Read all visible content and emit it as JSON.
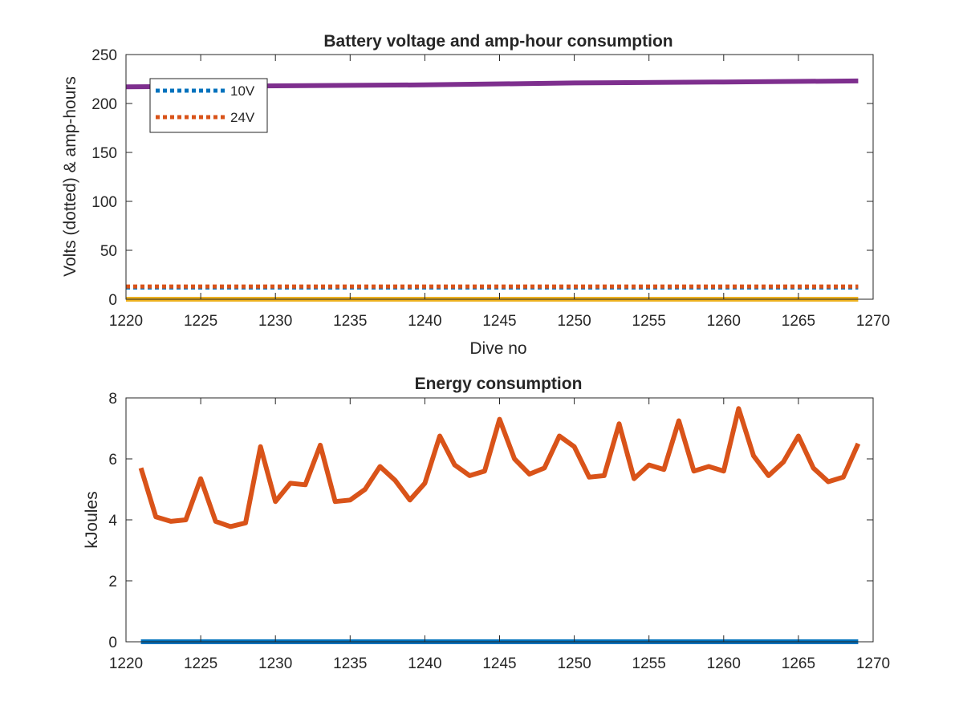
{
  "figure": {
    "background": "#ffffff"
  },
  "chart_data": [
    {
      "type": "line",
      "title": "Battery voltage and amp-hour consumption",
      "xlabel": "Dive no",
      "ylabel": "Volts (dotted) & amp-hours",
      "xlim": [
        1220,
        1270
      ],
      "ylim": [
        0,
        250
      ],
      "xticks": [
        "1220",
        "1225",
        "1230",
        "1235",
        "1240",
        "1245",
        "1250",
        "1255",
        "1260",
        "1265",
        "1270"
      ],
      "yticks": [
        "0",
        "50",
        "100",
        "150",
        "200",
        "250"
      ],
      "grid": false,
      "legend_position": "top-left",
      "series": [
        {
          "name": "10V",
          "style": "dotted",
          "color": "#0072BD",
          "x": [
            1220,
            1269
          ],
          "y": [
            12,
            12
          ]
        },
        {
          "name": "24V",
          "style": "dotted",
          "color": "#D95319",
          "x": [
            1220,
            1269
          ],
          "y": [
            13,
            13
          ]
        },
        {
          "style": "solid",
          "color": "#EDB120",
          "x": [
            1220,
            1269
          ],
          "y": [
            0,
            0
          ]
        },
        {
          "style": "solid",
          "color": "#7E2F8E",
          "x": [
            1220,
            1230,
            1240,
            1250,
            1260,
            1269
          ],
          "y": [
            217,
            218,
            219,
            221,
            222,
            223
          ]
        }
      ]
    },
    {
      "type": "line",
      "title": "Energy consumption",
      "xlabel": "",
      "ylabel": "kJoules",
      "xlim": [
        1220,
        1270
      ],
      "ylim": [
        0,
        8
      ],
      "xticks": [
        "1220",
        "1225",
        "1230",
        "1235",
        "1240",
        "1245",
        "1250",
        "1255",
        "1260",
        "1265",
        "1270"
      ],
      "yticks": [
        "0",
        "2",
        "4",
        "6",
        "8"
      ],
      "grid": false,
      "series": [
        {
          "style": "solid",
          "color": "#0072BD",
          "x": [
            1221,
            1269
          ],
          "y": [
            0,
            0
          ]
        },
        {
          "style": "solid",
          "color": "#D95319",
          "x": [
            1221,
            1222,
            1223,
            1224,
            1225,
            1226,
            1227,
            1228,
            1229,
            1230,
            1231,
            1232,
            1233,
            1234,
            1235,
            1236,
            1237,
            1238,
            1239,
            1240,
            1241,
            1242,
            1243,
            1244,
            1245,
            1246,
            1247,
            1248,
            1249,
            1250,
            1251,
            1252,
            1253,
            1254,
            1255,
            1256,
            1257,
            1258,
            1259,
            1260,
            1261,
            1262,
            1263,
            1264,
            1265,
            1266,
            1267,
            1268,
            1269
          ],
          "y": [
            5.7,
            4.1,
            3.95,
            4.0,
            5.35,
            3.95,
            3.78,
            3.9,
            6.4,
            4.6,
            5.2,
            5.15,
            6.45,
            4.6,
            4.65,
            5.0,
            5.75,
            5.3,
            4.65,
            5.2,
            6.75,
            5.8,
            5.45,
            5.6,
            7.3,
            6.0,
            5.5,
            5.7,
            6.75,
            6.4,
            5.4,
            5.45,
            7.15,
            5.35,
            5.8,
            5.65,
            7.25,
            5.6,
            5.75,
            5.6,
            7.65,
            6.1,
            5.45,
            5.9,
            6.75,
            5.7,
            5.25,
            5.4,
            6.5
          ]
        }
      ]
    }
  ]
}
